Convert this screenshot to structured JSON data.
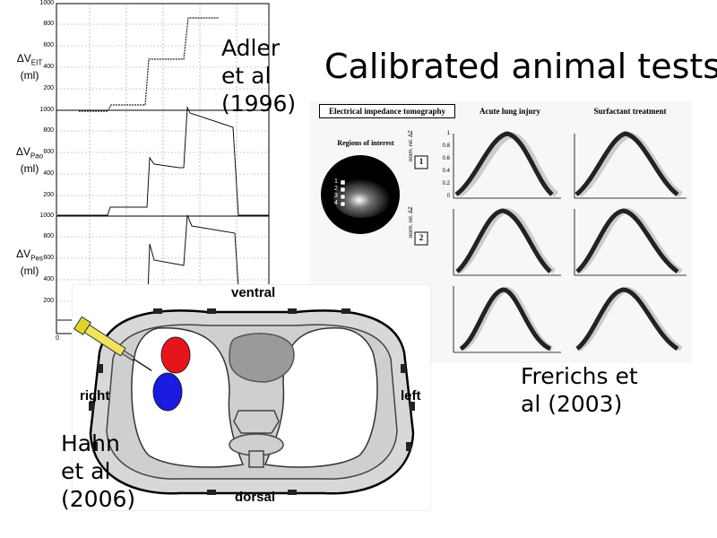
{
  "title": "Calibrated animal tests",
  "adler": {
    "citation_lines": [
      "Adler",
      "et al",
      "(1996)"
    ],
    "ylabels": [
      {
        "prefix": "ΔV",
        "sub": "EIT",
        "unit": "(ml)"
      },
      {
        "prefix": "ΔV",
        "sub": "Pao",
        "unit": "(ml)"
      },
      {
        "prefix": "ΔV",
        "sub": "Pes",
        "unit": "(ml)"
      }
    ],
    "ticks_top": [
      "1000",
      "800",
      "600",
      "400",
      "200"
    ],
    "ticks_mid": [
      "1000",
      "800",
      "600",
      "400",
      "200"
    ],
    "ticks_bottom": [
      "1000",
      "800",
      "600",
      "400",
      "200"
    ],
    "axis_origin": "0"
  },
  "frerichs": {
    "citation_lines": [
      "Frerichs et",
      "al (2003)"
    ],
    "header_box": "Electrical impedance tomography",
    "col_acute": "Acute lung injury",
    "col_surf": "Surfactant treatment",
    "roi_label": "Regions of interest",
    "roi_numbers": [
      "1",
      "2",
      "3",
      "4"
    ],
    "row_labels": [
      "1",
      "2"
    ],
    "ylabel": "norm. rel. ΔZ",
    "yticks": [
      "1",
      "0.8",
      "0.6",
      "0.4",
      "0.2",
      "0"
    ]
  },
  "hahn": {
    "citation_lines": [
      "Hahn",
      "et al",
      "(2006)"
    ],
    "label_ventral": "ventral",
    "label_dorsal": "dorsal",
    "label_right": "right",
    "label_left": "left"
  },
  "colors": {
    "red_balloon": "#e8141c",
    "blue_balloon": "#1a1ae0",
    "syringe": "#e0d42a",
    "heart": "#9a9a9a"
  }
}
